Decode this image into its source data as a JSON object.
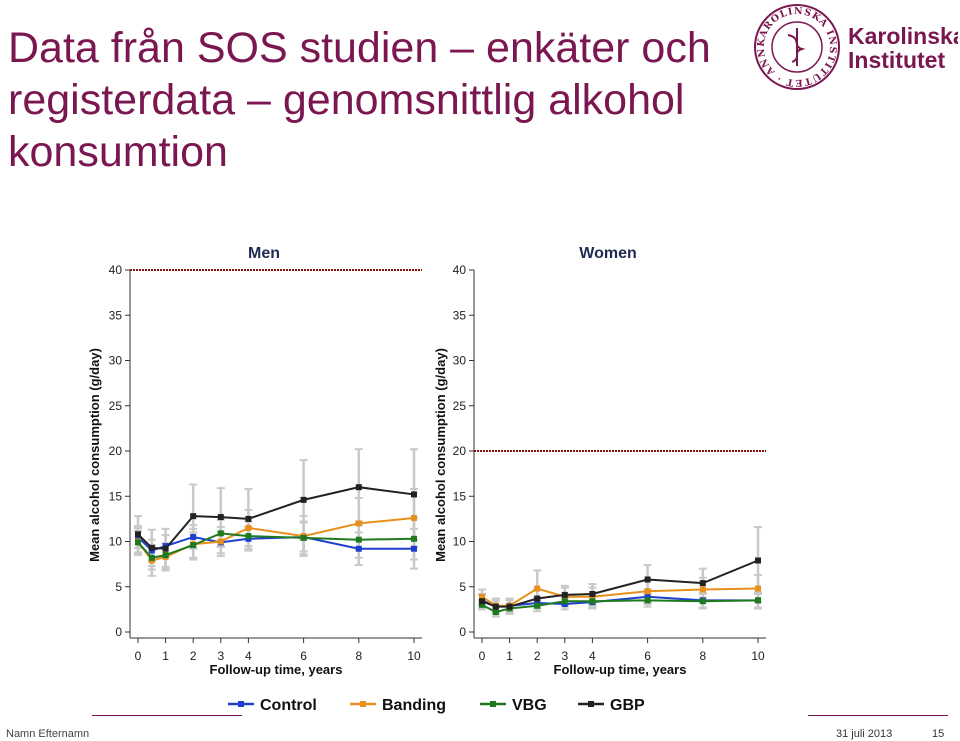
{
  "slide": {
    "title_lines": [
      "Data från SOS studien – enkäter och",
      "registerdata – genomsnittlig alkohol",
      "konsumtion"
    ],
    "logo": {
      "seal_text": "KAROLINSKA INSTITUTET · ANNO 1810",
      "name_line1": "Karolinska",
      "name_line2": "Institutet",
      "color": "#7a1650"
    },
    "footer": {
      "left_text": "Namn Efternamn",
      "date": "31 juli 2013",
      "page": "15"
    }
  },
  "chart_data": [
    {
      "type": "line",
      "title": "Men",
      "xlabel": "Follow-up time, years",
      "ylabel": "Mean alcohol consumption (g/day)",
      "xlim": [
        0,
        10
      ],
      "ylim": [
        0,
        40
      ],
      "xticks": [
        0,
        1,
        2,
        3,
        4,
        6,
        8,
        10
      ],
      "yticks": [
        0,
        5,
        10,
        15,
        20,
        25,
        30,
        35,
        40
      ],
      "reference_line": 40,
      "x": [
        0,
        0.5,
        1,
        2,
        3,
        4,
        6,
        8,
        10
      ],
      "series": [
        {
          "name": "Control",
          "color": "#1f3fd1",
          "values": [
            10.5,
            9.0,
            9.5,
            10.5,
            9.9,
            10.3,
            10.5,
            9.2,
            9.2
          ],
          "error": [
            1.2,
            1.2,
            1.2,
            1.3,
            1.2,
            1.3,
            1.6,
            1.8,
            2.2
          ]
        },
        {
          "name": "Banding",
          "color": "#e8901c",
          "values": [
            10.0,
            7.9,
            8.3,
            9.7,
            10.0,
            11.5,
            10.6,
            12.0,
            12.6
          ],
          "error": [
            1.5,
            1.7,
            1.5,
            1.7,
            1.6,
            2.0,
            2.2,
            2.8,
            3.2
          ]
        },
        {
          "name": "VBG",
          "color": "#1f7a1f",
          "values": [
            9.9,
            8.2,
            8.5,
            9.6,
            10.9,
            10.6,
            10.4,
            10.2,
            10.3
          ],
          "error": [
            1.3,
            1.3,
            1.3,
            1.4,
            1.5,
            1.6,
            1.8,
            2.0,
            2.3
          ]
        },
        {
          "name": "GBP",
          "color": "#222222",
          "values": [
            10.8,
            9.3,
            9.2,
            12.8,
            12.7,
            12.5,
            14.6,
            16.0,
            15.2
          ],
          "error": [
            2.0,
            2.0,
            2.2,
            3.5,
            3.2,
            3.3,
            4.4,
            4.2,
            5.0
          ]
        }
      ]
    },
    {
      "type": "line",
      "title": "Women",
      "xlabel": "Follow-up time, years",
      "ylabel": "Mean alcohol consumption (g/day)",
      "xlim": [
        0,
        10
      ],
      "ylim": [
        0,
        40
      ],
      "xticks": [
        0,
        1,
        2,
        3,
        4,
        6,
        8,
        10
      ],
      "yticks": [
        0,
        5,
        10,
        15,
        20,
        25,
        30,
        35,
        40
      ],
      "reference_line": 20,
      "x": [
        0,
        0.5,
        1,
        2,
        3,
        4,
        6,
        8,
        10
      ],
      "series": [
        {
          "name": "Control",
          "color": "#1f3fd1",
          "values": [
            3.5,
            2.8,
            2.9,
            3.2,
            3.1,
            3.3,
            3.9,
            3.5,
            3.5
          ],
          "error": [
            0.6,
            0.6,
            0.6,
            0.6,
            0.6,
            0.7,
            0.8,
            0.8,
            0.9
          ]
        },
        {
          "name": "Banding",
          "color": "#e8901c",
          "values": [
            3.9,
            2.9,
            2.9,
            4.8,
            3.9,
            3.9,
            4.5,
            4.7,
            4.8
          ],
          "error": [
            0.8,
            0.8,
            0.8,
            2.0,
            1.0,
            1.0,
            1.2,
            1.3,
            1.5
          ]
        },
        {
          "name": "VBG",
          "color": "#1f7a1f",
          "values": [
            3.0,
            2.2,
            2.6,
            2.9,
            3.4,
            3.4,
            3.5,
            3.4,
            3.5
          ],
          "error": [
            0.5,
            0.5,
            0.5,
            0.6,
            0.6,
            0.7,
            0.7,
            0.8,
            0.8
          ]
        },
        {
          "name": "GBP",
          "color": "#222222",
          "values": [
            3.4,
            2.8,
            2.8,
            3.7,
            4.1,
            4.2,
            5.8,
            5.4,
            7.9
          ],
          "error": [
            0.8,
            0.8,
            0.8,
            1.0,
            1.0,
            1.1,
            1.6,
            1.6,
            3.7
          ]
        }
      ]
    }
  ],
  "legend": {
    "placement": "bottom",
    "items": [
      {
        "name": "Control",
        "color": "#1f3fd1"
      },
      {
        "name": "Banding",
        "color": "#e8901c"
      },
      {
        "name": "VBG",
        "color": "#1f7a1f"
      },
      {
        "name": "GBP",
        "color": "#222222"
      }
    ]
  }
}
